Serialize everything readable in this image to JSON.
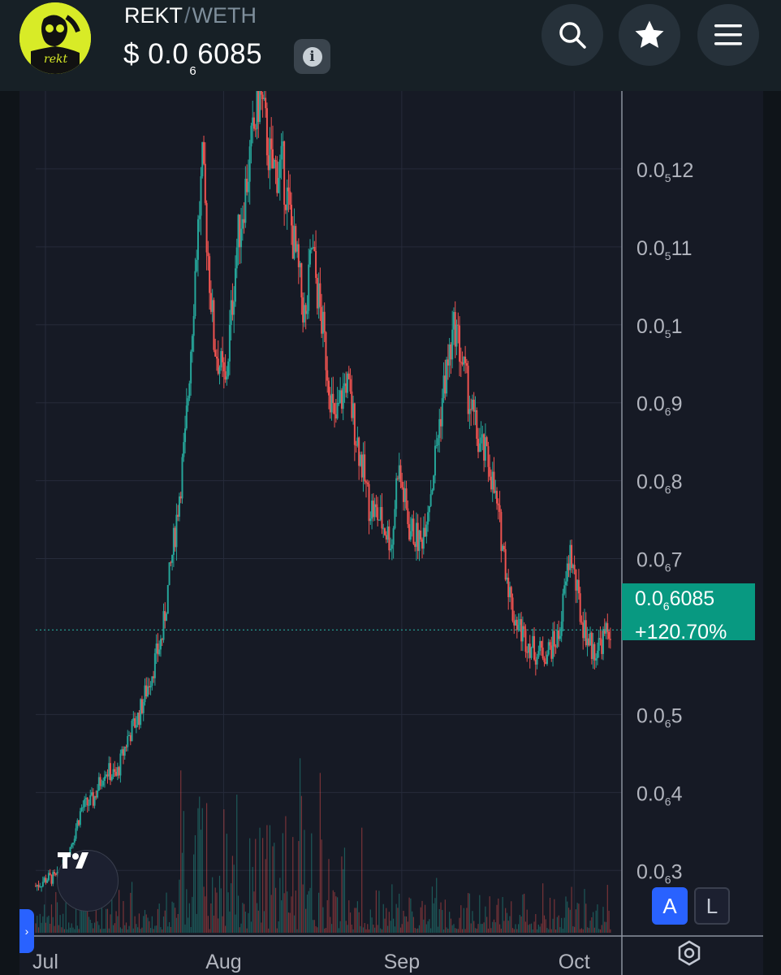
{
  "header": {
    "logo_text": "rekt",
    "base_token": "REKT",
    "separator": "/",
    "quote_token": "WETH",
    "price_prefix": "$",
    "price_lead": "0.0",
    "price_zeros": "6",
    "price_digits": "6085",
    "info_label": "i",
    "icons": [
      "search-icon",
      "star-icon",
      "menu-icon"
    ]
  },
  "chart_data": {
    "type": "candlestick",
    "y_scale_note": "subscript digit = count of zeros after decimal point",
    "y_ticks": [
      {
        "lead": "0.0",
        "zeros": "5",
        "digits": "12",
        "value": 1.2e-06
      },
      {
        "lead": "0.0",
        "zeros": "5",
        "digits": "11",
        "value": 1.1e-06
      },
      {
        "lead": "0.0",
        "zeros": "5",
        "digits": "1",
        "value": 1e-06
      },
      {
        "lead": "0.0",
        "zeros": "6",
        "digits": "9",
        "value": 9e-07
      },
      {
        "lead": "0.0",
        "zeros": "6",
        "digits": "8",
        "value": 8e-07
      },
      {
        "lead": "0.0",
        "zeros": "6",
        "digits": "7",
        "value": 7e-07
      },
      {
        "lead": "0.0",
        "zeros": "6",
        "digits": "5",
        "value": 5e-07
      },
      {
        "lead": "0.0",
        "zeros": "6",
        "digits": "4",
        "value": 4e-07
      },
      {
        "lead": "0.0",
        "zeros": "6",
        "digits": "3",
        "value": 3e-07
      }
    ],
    "x_ticks": [
      "Jul",
      "Aug",
      "Sep",
      "Oct"
    ],
    "ylim": [
      2.2e-07,
      1.3e-06
    ],
    "x_range_days": [
      0,
      102
    ],
    "x_tick_days": [
      0,
      31,
      62,
      92
    ],
    "last_price": {
      "lead": "0.0",
      "zeros": "6",
      "digits": "6085",
      "value": 6.085e-07,
      "change": "+120.70%"
    },
    "price_path": [
      [
        0,
        2.8e-07
      ],
      [
        2,
        2.9e-07
      ],
      [
        4,
        2.9e-07
      ],
      [
        6,
        3.3e-07
      ],
      [
        8,
        3.8e-07
      ],
      [
        10,
        3.9e-07
      ],
      [
        12,
        4.3e-07
      ],
      [
        14,
        4.2e-07
      ],
      [
        16,
        4.7e-07
      ],
      [
        18,
        5e-07
      ],
      [
        20,
        5.5e-07
      ],
      [
        22,
        6e-07
      ],
      [
        24,
        7.2e-07
      ],
      [
        26,
        8.5e-07
      ],
      [
        28,
        1.1e-06
      ],
      [
        29,
        1.2e-06
      ],
      [
        31,
        9.8e-07
      ],
      [
        33,
        9.2e-07
      ],
      [
        35,
        1.1e-06
      ],
      [
        37,
        1.2e-06
      ],
      [
        39,
        1.3e-06
      ],
      [
        41,
        1.2e-06
      ],
      [
        43,
        1.2e-06
      ],
      [
        45,
        1.1e-06
      ],
      [
        47,
        1e-06
      ],
      [
        48,
        1.1e-06
      ],
      [
        50,
        9.9e-07
      ],
      [
        52,
        8.7e-07
      ],
      [
        54,
        9.3e-07
      ],
      [
        56,
        8.5e-07
      ],
      [
        58,
        7.7e-07
      ],
      [
        60,
        7.5e-07
      ],
      [
        62,
        7.2e-07
      ],
      [
        63,
        8.2e-07
      ],
      [
        65,
        7.4e-07
      ],
      [
        67,
        7.2e-07
      ],
      [
        69,
        8e-07
      ],
      [
        71,
        9.2e-07
      ],
      [
        73,
        1e-06
      ],
      [
        75,
        9.2e-07
      ],
      [
        77,
        8.5e-07
      ],
      [
        79,
        8.2e-07
      ],
      [
        81,
        7.3e-07
      ],
      [
        83,
        6.3e-07
      ],
      [
        85,
        6e-07
      ],
      [
        87,
        5.8e-07
      ],
      [
        89,
        5.8e-07
      ],
      [
        91,
        6e-07
      ],
      [
        93,
        7.1e-07
      ],
      [
        95,
        6.2e-07
      ],
      [
        97,
        5.8e-07
      ],
      [
        99,
        6e-07
      ],
      [
        100,
        6.1e-07
      ]
    ]
  },
  "controls": {
    "tv_logo": "TV",
    "auto_scale": "A",
    "log_scale": "L",
    "side_tab": "›"
  },
  "colors": {
    "up": "#26a69a",
    "down": "#ef5350",
    "price_label_bg": "#089981",
    "accent_blue": "#2962ff"
  }
}
